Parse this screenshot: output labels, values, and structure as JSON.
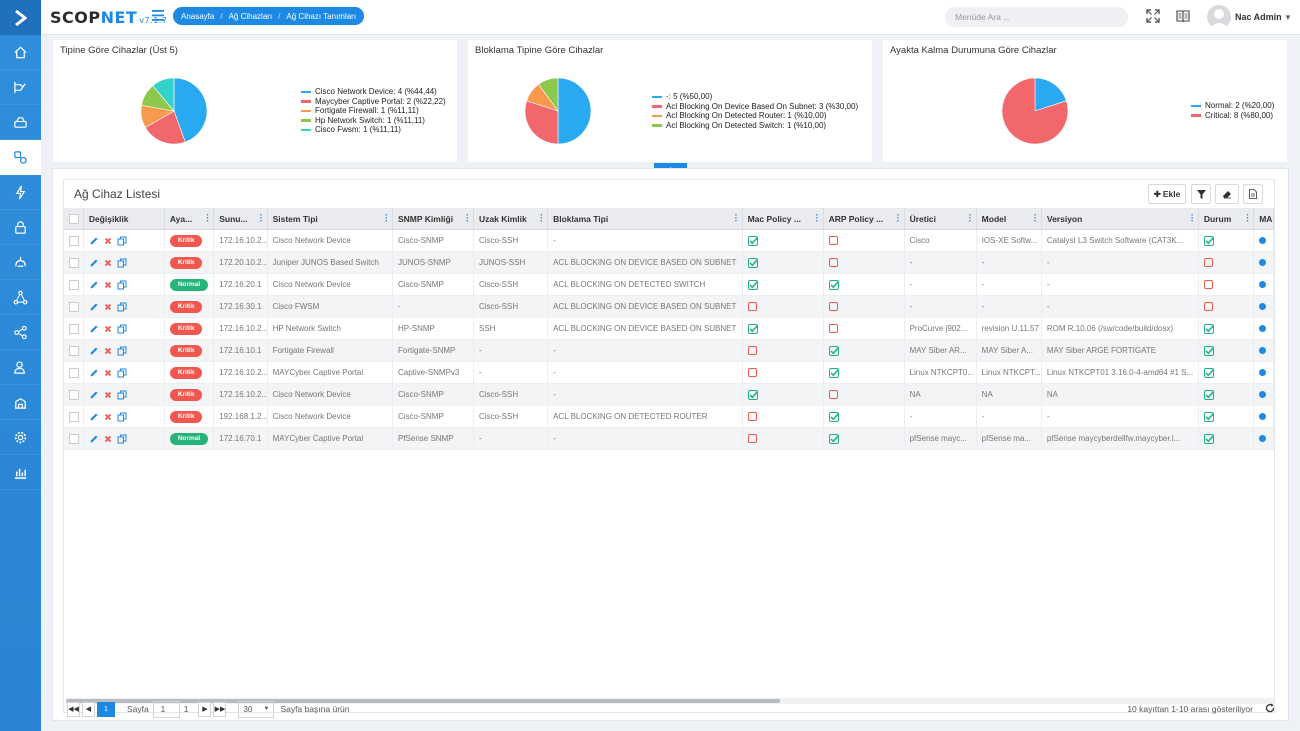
{
  "app": {
    "brand_main": "SCOP",
    "brand_net": "NET",
    "version": "v7.1.7",
    "breadcrumb": [
      "Anasayfa",
      "Ağ Cihazları",
      "Ağ Cihazı Tanımları"
    ],
    "search_placeholder": "Menüde Ara ...",
    "user": "Nac Admin"
  },
  "sidebar": {
    "icons": [
      "home-icon",
      "dashboard-route-icon",
      "network-devices-icon",
      "devices-icon",
      "flash-icon",
      "lock-icon",
      "policy-icon",
      "topology-icon",
      "share-icon",
      "users-icon",
      "building-icon",
      "settings-icon",
      "reports-icon"
    ]
  },
  "charts": {
    "c1_title": "Tipine Göre Cihazlar (Üst 5)",
    "c2_title": "Bloklama Tipine Göre Cihazlar",
    "c3_title": "Ayakta Kalma Durumuna Göre Cihazlar"
  },
  "chart_data": [
    {
      "type": "pie",
      "title": "Tipine Göre Cihazlar (Üst 5)",
      "legend_position": "right",
      "slices": [
        {
          "label": "Cisco Network Device: 4 (%44,44)",
          "value": 4,
          "color": "#29a9f2"
        },
        {
          "label": "Maycyber Captive Portal: 2 (%22,22)",
          "value": 2,
          "color": "#f2676b"
        },
        {
          "label": "Fortigate Firewall: 1 (%11,11)",
          "value": 1,
          "color": "#f79a4e"
        },
        {
          "label": "Hp Network Switch: 1 (%11,11)",
          "value": 1,
          "color": "#8cc84b"
        },
        {
          "label": "Cisco Fwsm: 1 (%11,11)",
          "value": 1,
          "color": "#34d1c9"
        }
      ]
    },
    {
      "type": "pie",
      "title": "Bloklama Tipine Göre Cihazlar",
      "legend_position": "right",
      "slices": [
        {
          "label": "-: 5 (%50,00)",
          "value": 5,
          "color": "#29a9f2"
        },
        {
          "label": "Acl Blocking On Device Based On Subnet: 3 (%30,00)",
          "value": 3,
          "color": "#f2676b"
        },
        {
          "label": "Acl Blocking On Detected Router: 1 (%10,00)",
          "value": 1,
          "color": "#f79a4e"
        },
        {
          "label": "Acl Blocking On Detected Switch: 1 (%10,00)",
          "value": 1,
          "color": "#8cc84b"
        }
      ]
    },
    {
      "type": "pie",
      "title": "Ayakta Kalma Durumuna Göre Cihazlar",
      "legend_position": "right",
      "slices": [
        {
          "label": "Normal: 2 (%20,00)",
          "value": 2,
          "color": "#29a9f2"
        },
        {
          "label": "Critical: 8 (%80,00)",
          "value": 8,
          "color": "#f2676b"
        }
      ]
    }
  ],
  "table": {
    "title": "Ağ Cihaz Listesi",
    "add_label": "Ekle",
    "columns": [
      "Değişiklik",
      "Aya...",
      "Sunu...",
      "Sistem Tipi",
      "SNMP Kimliği",
      "Uzak Kimlik",
      "Bloklama Tipi",
      "Mac Policy ...",
      "ARP Policy ...",
      "Üretici",
      "Model",
      "Versiyon",
      "Durum",
      "MA"
    ],
    "rows": [
      {
        "status": "Kritik",
        "ip": "172.16.10.2...",
        "sys": "Cisco Network Device",
        "snmp": "Cisco-SNMP",
        "remote": "Cisco-SSH",
        "block": "-",
        "mac": true,
        "arp": false,
        "vendor": "Cisco",
        "model": "IOS-XE Softw...",
        "version": "Catalyst L3 Switch Software (CAT3K...",
        "durum": true
      },
      {
        "status": "Kritik",
        "ip": "172.20.10.2...",
        "sys": "Juniper JUNOS Based Switch",
        "snmp": "JUNOS-SNMP",
        "remote": "JUNOS-SSH",
        "block": "ACL BLOCKING ON DEVICE BASED ON SUBNET",
        "mac": true,
        "arp": false,
        "vendor": "-",
        "model": "-",
        "version": "-",
        "durum": false
      },
      {
        "status": "Normal",
        "ip": "172.16.20.1",
        "sys": "Cisco Network Device",
        "snmp": "Cisco-SNMP",
        "remote": "Cisco-SSH",
        "block": "ACL BLOCKING ON DETECTED SWITCH",
        "mac": true,
        "arp": true,
        "vendor": "-",
        "model": "-",
        "version": "-",
        "durum": false
      },
      {
        "status": "Kritik",
        "ip": "172.16.30.1",
        "sys": "Cisco FWSM",
        "snmp": "-",
        "remote": "Cisco-SSH",
        "block": "ACL BLOCKING ON DEVICE BASED ON SUBNET",
        "mac": false,
        "arp": false,
        "vendor": "-",
        "model": "-",
        "version": "-",
        "durum": false
      },
      {
        "status": "Kritik",
        "ip": "172.16.10.2...",
        "sys": "HP Network Switch",
        "snmp": "HP-SNMP",
        "remote": "SSH",
        "block": "ACL BLOCKING ON DEVICE BASED ON SUBNET",
        "mac": true,
        "arp": false,
        "vendor": "ProCurve j902...",
        "model": "revision U.11.57",
        "version": "ROM R.10.06 (/sw/code/build/dosx)",
        "durum": true
      },
      {
        "status": "Kritik",
        "ip": "172.16.10.1",
        "sys": "Fortigate Firewall",
        "snmp": "Fortigate-SNMP",
        "remote": "-",
        "block": "-",
        "mac": false,
        "arp": true,
        "vendor": "MAY Siber AR...",
        "model": "MAY Siber A...",
        "version": "MAY Siber ARGE FORTIGATE",
        "durum": true
      },
      {
        "status": "Kritik",
        "ip": "172.16.10.2...",
        "sys": "MAYCyber Captive Portal",
        "snmp": "Captive-SNMPv3",
        "remote": "-",
        "block": "-",
        "mac": false,
        "arp": true,
        "vendor": "Linux NTKCPT0...",
        "model": "Linux NTKCPT...",
        "version": "Linux NTKCPT01 3.16.0-4-amd64 #1 S...",
        "durum": true
      },
      {
        "status": "Kritik",
        "ip": "172.16.10.2...",
        "sys": "Cisco Network Device",
        "snmp": "Cisco-SNMP",
        "remote": "Cisco-SSH",
        "block": "-",
        "mac": true,
        "arp": false,
        "vendor": "NA",
        "model": "NA",
        "version": "NA",
        "durum": true
      },
      {
        "status": "Kritik",
        "ip": "192.168.1.2...",
        "sys": "Cisco Network Device",
        "snmp": "Cisco-SNMP",
        "remote": "Cisco-SSH",
        "block": "ACL BLOCKING ON DETECTED ROUTER",
        "mac": false,
        "arp": true,
        "vendor": "-",
        "model": "-",
        "version": "-",
        "durum": true
      },
      {
        "status": "Normal",
        "ip": "172.16.70.1",
        "sys": "MAYCyber Captive Portal",
        "snmp": "PfSense SNMP",
        "remote": "-",
        "block": "-",
        "mac": false,
        "arp": true,
        "vendor": "pfSense mayc...",
        "model": "pfSense ma...",
        "version": "pfSense maycyberdellfw.maycyber.l...",
        "durum": true
      }
    ]
  },
  "pager": {
    "current_page": "1",
    "page_label": "Sayfa",
    "page_input": "1",
    "total_pages": "1",
    "page_size": "30",
    "page_size_label": "Sayfa başına ürün",
    "summary": "10 kayıttan 1-10 arası gösteriliyor"
  },
  "colors": {
    "accent": "#1e88e5",
    "critical": "#f2574f",
    "normal": "#26b47a",
    "check": "#1fb28a"
  }
}
